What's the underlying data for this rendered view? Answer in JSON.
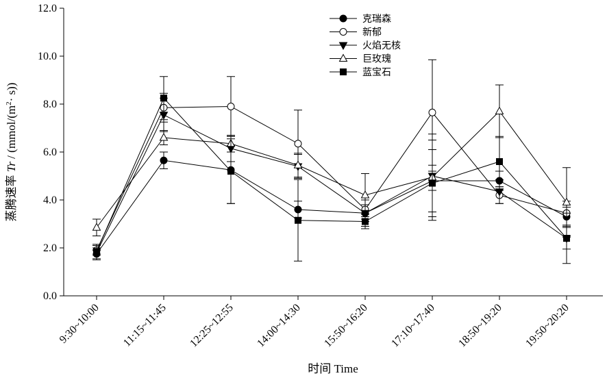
{
  "chart_data": {
    "type": "line",
    "xlabel": "时间  Time",
    "ylabel_cn": "蒸腾速率 ",
    "ylabel_symbol": "Tr",
    "ylabel_unit_pre": " / (mmol/(m",
    "ylabel_unit_sup": "2",
    "ylabel_unit_post": "· s))",
    "categories": [
      "9:30~10:00",
      "11:15~11:45",
      "12:25~12:55",
      "14:00~14:30",
      "15:50~16:20",
      "17:10~17:40",
      "18:50~19:20",
      "19:50~20:20"
    ],
    "ylim": [
      0,
      12
    ],
    "yticks": [
      "0.0",
      "2.0",
      "4.0",
      "6.0",
      "8.0",
      "10.0",
      "12.0"
    ],
    "grid": false,
    "legend_position": "top-center",
    "series": [
      {
        "name": "克瑞森",
        "marker": "circle-filled",
        "values": [
          1.75,
          5.65,
          5.25,
          3.6,
          3.45,
          4.8,
          4.8,
          3.3
        ],
        "err": [
          0.25,
          0.35,
          1.4,
          0.35,
          0.35,
          0.4,
          0.4,
          0.4
        ]
      },
      {
        "name": "新郁",
        "marker": "circle-open",
        "values": [
          1.9,
          7.85,
          7.9,
          6.35,
          3.6,
          7.65,
          4.2,
          3.45
        ],
        "err": [
          0.2,
          0.6,
          1.25,
          1.4,
          0.4,
          2.2,
          0.35,
          0.5
        ]
      },
      {
        "name": "火焰无核",
        "marker": "triangle-down-filled",
        "values": [
          1.8,
          7.55,
          6.15,
          5.4,
          3.45,
          5.0,
          4.35,
          2.4
        ],
        "err": [
          0.3,
          0.7,
          0.55,
          0.5,
          0.55,
          1.5,
          0.5,
          0.45
        ]
      },
      {
        "name": "巨玫瑰",
        "marker": "triangle-up-open",
        "values": [
          2.85,
          6.6,
          6.35,
          5.45,
          4.2,
          4.95,
          7.7,
          3.9
        ],
        "err": [
          0.35,
          0.3,
          0.35,
          0.5,
          0.9,
          1.8,
          1.1,
          1.45
        ]
      },
      {
        "name": "蓝宝石",
        "marker": "square-filled",
        "values": [
          1.85,
          8.25,
          5.2,
          3.15,
          3.1,
          4.7,
          5.6,
          2.4
        ],
        "err": [
          0.3,
          0.9,
          1.35,
          1.7,
          0.3,
          1.4,
          1.05,
          1.05
        ]
      }
    ]
  }
}
